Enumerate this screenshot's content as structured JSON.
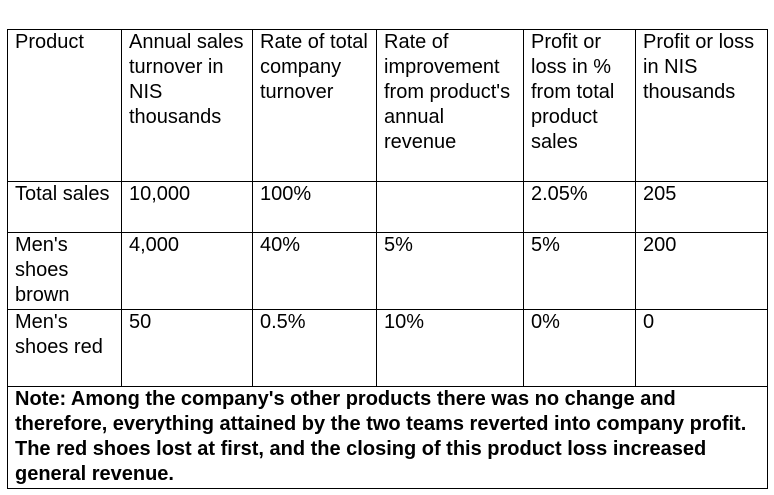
{
  "table": {
    "headers": [
      "Product",
      "Annual sales turnover in NIS thousands",
      "Rate of total company turnover",
      "Rate of improvement from product's annual revenue",
      "Profit or loss in % from total product sales",
      "Profit or loss in NIS thousands"
    ],
    "rows": [
      [
        "Total sales",
        "10,000",
        "100%",
        "",
        "2.05%",
        "205"
      ],
      [
        "Men's shoes brown",
        "4,000",
        "40%",
        "5%",
        "5%",
        "200"
      ],
      [
        "Men's shoes red",
        "50",
        "0.5%",
        "10%",
        "0%",
        "0"
      ]
    ],
    "note": "Note:  Among the company's other products there was no change and therefore, everything attained by the two teams reverted into company profit.  The red shoes lost at first, and the closing of this product loss increased general revenue."
  }
}
